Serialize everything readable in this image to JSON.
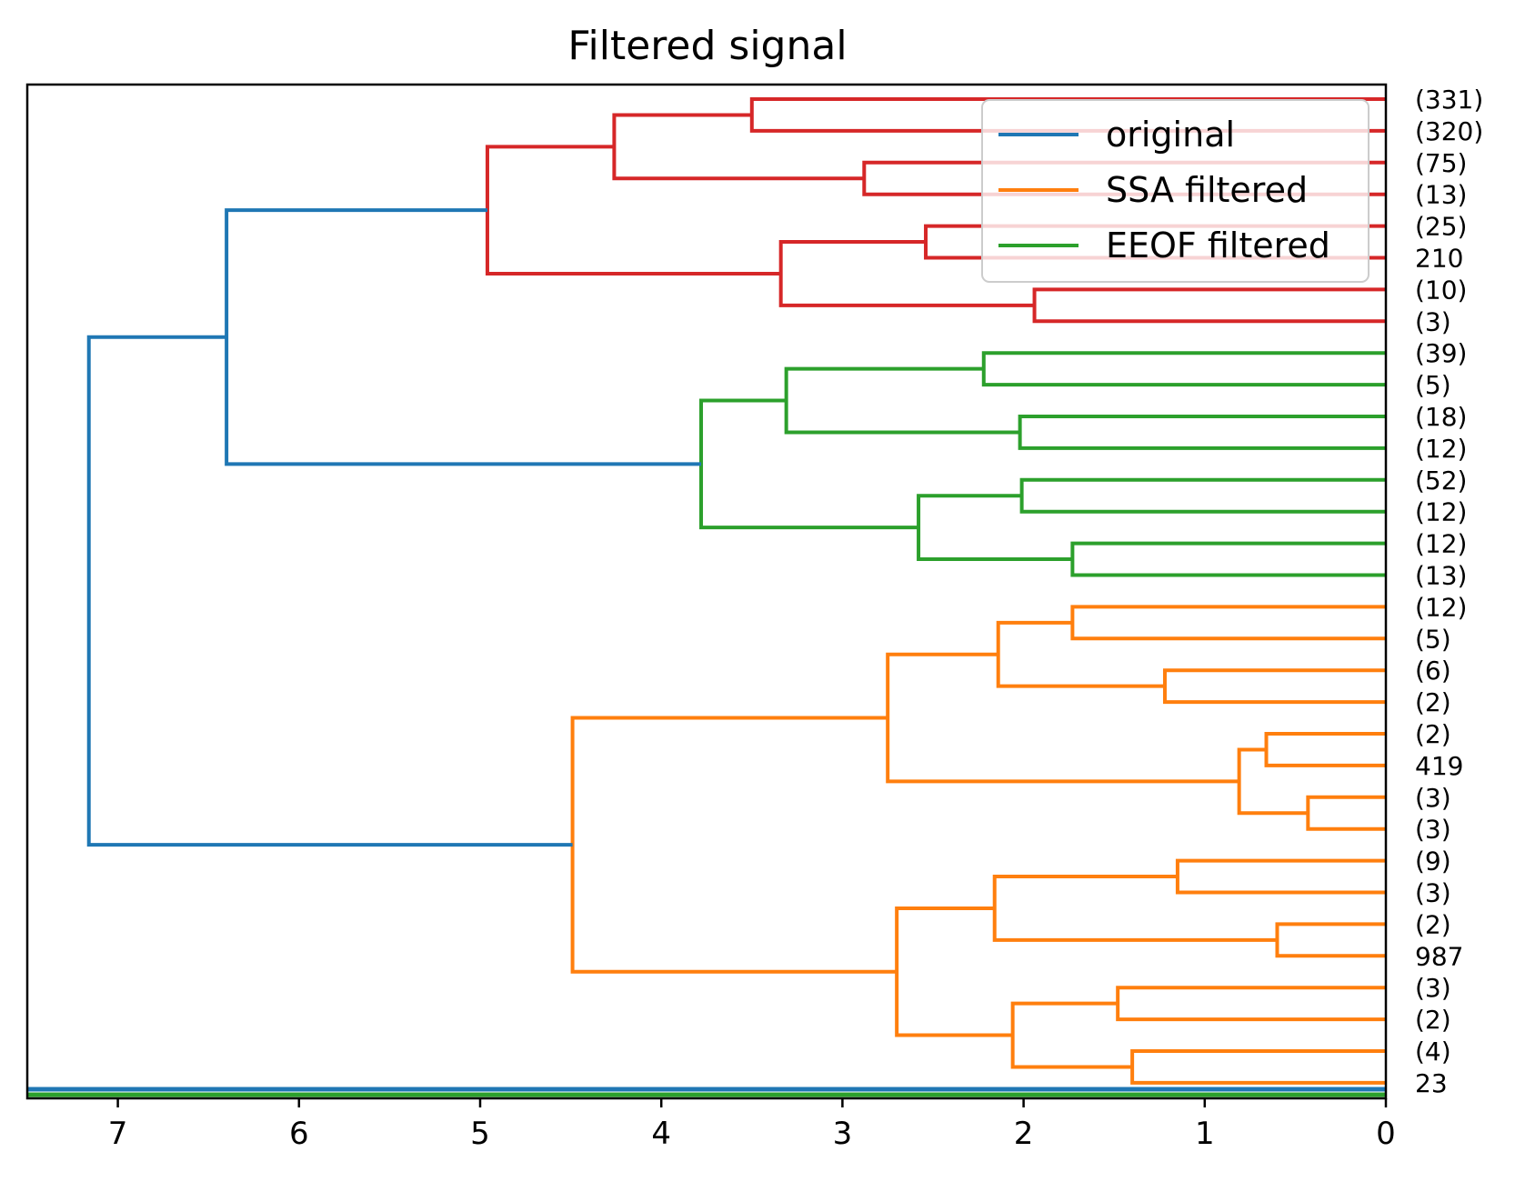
{
  "chart_data": {
    "type": "dendrogram",
    "title": "Filtered signal",
    "orientation": "left",
    "xlabel": "",
    "ylabel": "",
    "xlim": [
      7.5,
      0
    ],
    "x_ticks": [
      7,
      6,
      5,
      4,
      3,
      2,
      1,
      0
    ],
    "grid": false,
    "legend": {
      "placement": "top-right",
      "entries": [
        {
          "label": "original",
          "color": "#1f77b4"
        },
        {
          "label": "SSA filtered",
          "color": "#ff7f0e"
        },
        {
          "label": "EEOF filtered",
          "color": "#2ca02c"
        }
      ]
    },
    "leaf_labels": [
      "(331)",
      "(320)",
      "(75)",
      "(13)",
      "(25)",
      "210",
      "(10)",
      "(3)",
      "(39)",
      "(5)",
      "(18)",
      "(12)",
      "(52)",
      "(12)",
      "(12)",
      "(13)",
      "(12)",
      "(5)",
      "(6)",
      "(2)",
      "(2)",
      "419",
      "(3)",
      "(3)",
      "(9)",
      "(3)",
      "(2)",
      "987",
      "(3)",
      "(2)",
      "(4)",
      "23"
    ],
    "links": [
      {
        "a": 0,
        "b": 1,
        "height": 3.5,
        "color": "#d62728"
      },
      {
        "a": 2,
        "b": 3,
        "height": 2.88,
        "color": "#d62728"
      },
      {
        "a": 4,
        "b": 5,
        "height": 2.54,
        "color": "#d62728"
      },
      {
        "a": 6,
        "b": 7,
        "height": 1.94,
        "color": "#d62728"
      },
      {
        "a": 8,
        "b": 9,
        "height": 2.22,
        "color": "#2ca02c"
      },
      {
        "a": 10,
        "b": 11,
        "height": 2.02,
        "color": "#2ca02c"
      },
      {
        "a": 12,
        "b": 13,
        "height": 2.01,
        "color": "#2ca02c"
      },
      {
        "a": 14,
        "b": 15,
        "height": 1.73,
        "color": "#2ca02c"
      },
      {
        "a": 16,
        "b": 17,
        "height": 1.73,
        "color": "#ff7f0e"
      },
      {
        "a": 18,
        "b": 19,
        "height": 1.22,
        "color": "#ff7f0e"
      },
      {
        "a": 20,
        "b": 21,
        "height": 0.66,
        "color": "#ff7f0e"
      },
      {
        "a": 22,
        "b": 23,
        "height": 0.43,
        "color": "#ff7f0e"
      },
      {
        "a": 24,
        "b": 25,
        "height": 1.15,
        "color": "#ff7f0e"
      },
      {
        "a": 26,
        "b": 27,
        "height": 0.6,
        "color": "#ff7f0e"
      },
      {
        "a": 28,
        "b": 29,
        "height": 1.48,
        "color": "#ff7f0e"
      },
      {
        "a": 30,
        "b": 31,
        "height": 1.4,
        "color": "#ff7f0e"
      },
      {
        "a": 32,
        "b": 33,
        "height": 4.26,
        "color": "#d62728"
      },
      {
        "a": 34,
        "b": 35,
        "height": 3.34,
        "color": "#d62728"
      },
      {
        "a": 36,
        "b": 37,
        "height": 3.31,
        "color": "#2ca02c"
      },
      {
        "a": 38,
        "b": 39,
        "height": 2.58,
        "color": "#2ca02c"
      },
      {
        "a": 40,
        "b": 41,
        "height": 2.14,
        "color": "#ff7f0e"
      },
      {
        "a": 42,
        "b": 43,
        "height": 0.81,
        "color": "#ff7f0e"
      },
      {
        "a": 44,
        "b": 45,
        "height": 2.16,
        "color": "#ff7f0e"
      },
      {
        "a": 46,
        "b": 47,
        "height": 2.06,
        "color": "#ff7f0e"
      },
      {
        "a": 48,
        "b": 49,
        "height": 4.96,
        "color": "#d62728"
      },
      {
        "a": 50,
        "b": 51,
        "height": 3.78,
        "color": "#2ca02c"
      },
      {
        "a": 52,
        "b": 53,
        "height": 2.75,
        "color": "#ff7f0e"
      },
      {
        "a": 54,
        "b": 55,
        "height": 2.7,
        "color": "#ff7f0e"
      },
      {
        "a": 58,
        "b": 59,
        "height": 4.49,
        "color": "#ff7f0e"
      },
      {
        "a": 56,
        "b": 57,
        "height": 6.4,
        "color": "#1f77b4"
      },
      {
        "a": 61,
        "b": 60,
        "height": 7.16,
        "color": "#1f77b4"
      }
    ],
    "baseline_lines": [
      {
        "color": "#1f77b4",
        "value": 0
      },
      {
        "color": "#2ca02c",
        "value": 0
      }
    ]
  }
}
